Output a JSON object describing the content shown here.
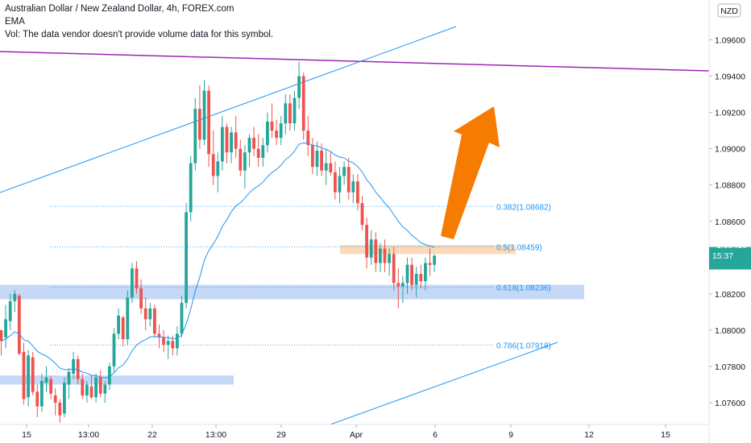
{
  "header": {
    "title": "Australian Dollar / New Zealand Dollar, 4h, FOREX.com",
    "indicator": "EMA",
    "volume_note": "Vol: The data vendor doesn't provide volume data for this symbol."
  },
  "price_axis": {
    "currency": "NZD",
    "current_price": "1.08410",
    "countdown": "15:37"
  },
  "colors": {
    "up": "#26a69a",
    "down": "#ef5350",
    "ema": "#2196f3",
    "trendline": "#2196f3",
    "resistance": "#9c27b0",
    "fib": "#2196f3",
    "zone": "#bbd1f5",
    "orange_zone": "#fbd3ad",
    "arrow": "#f57c00",
    "price_badge": "#26a69a"
  },
  "chart_data": {
    "type": "candlestick",
    "symbol": "AUDNZD",
    "timeframe": "4h",
    "ylim": [
      1.0748,
      1.0982
    ],
    "y_ticks": [
      "1.07600",
      "1.07800",
      "1.08000",
      "1.08200",
      "1.08400",
      "1.08600",
      "1.08800",
      "1.09000",
      "1.09200",
      "1.09400",
      "1.09600"
    ],
    "x_ticks": [
      "15",
      "13:00",
      "22",
      "13:00",
      "29",
      "Apr",
      "6",
      "9",
      "12",
      "15"
    ],
    "fib_levels": [
      {
        "label": "0.382(1.08682)",
        "value": 1.08682
      },
      {
        "label": "0.5(1.08459)",
        "value": 1.08459
      },
      {
        "label": "0.618(1.08236)",
        "value": 1.08236
      },
      {
        "label": "0.786(1.07918)",
        "value": 1.07918
      }
    ],
    "zones": [
      {
        "name": "support-zone-upper",
        "from": 1.0817,
        "to": 1.0825
      },
      {
        "name": "support-zone-lower",
        "from": 1.077,
        "to": 1.0775
      },
      {
        "name": "fib-zone",
        "from": 1.0842,
        "to": 1.0847
      }
    ],
    "last_price": 1.0841,
    "candles": [
      [
        1.08,
        1.08,
        1.0786,
        1.0794
      ],
      [
        1.0796,
        1.0814,
        1.079,
        1.0806
      ],
      [
        1.0805,
        1.082,
        1.08,
        1.0816
      ],
      [
        1.0816,
        1.0822,
        1.081,
        1.082
      ],
      [
        1.0819,
        1.082,
        1.0786,
        1.0787
      ],
      [
        1.0788,
        1.0793,
        1.0759,
        1.0762
      ],
      [
        1.0763,
        1.0789,
        1.0758,
        1.0786
      ],
      [
        1.0785,
        1.0788,
        1.0764,
        1.0766
      ],
      [
        1.0766,
        1.077,
        1.0752,
        1.0758
      ],
      [
        1.0758,
        1.0776,
        1.0755,
        1.0772
      ],
      [
        1.0771,
        1.078,
        1.0766,
        1.0774
      ],
      [
        1.0773,
        1.0775,
        1.0762,
        1.0765
      ],
      [
        1.0764,
        1.0768,
        1.0753,
        1.076
      ],
      [
        1.076,
        1.0762,
        1.0749,
        1.0753
      ],
      [
        1.0754,
        1.0774,
        1.0752,
        1.0771
      ],
      [
        1.077,
        1.0779,
        1.0762,
        1.0777
      ],
      [
        1.0776,
        1.0788,
        1.0773,
        1.0784
      ],
      [
        1.0784,
        1.0786,
        1.077,
        1.0773
      ],
      [
        1.0773,
        1.0776,
        1.0762,
        1.0764
      ],
      [
        1.0764,
        1.0772,
        1.076,
        1.077
      ],
      [
        1.0769,
        1.0775,
        1.0762,
        1.0763
      ],
      [
        1.0763,
        1.0776,
        1.076,
        1.0774
      ],
      [
        1.0774,
        1.0778,
        1.0763,
        1.0765
      ],
      [
        1.0765,
        1.0772,
        1.076,
        1.077
      ],
      [
        1.077,
        1.0782,
        1.0767,
        1.078
      ],
      [
        1.078,
        1.0801,
        1.0777,
        1.0798
      ],
      [
        1.0798,
        1.0812,
        1.0795,
        1.0808
      ],
      [
        1.0807,
        1.0808,
        1.0791,
        1.0795
      ],
      [
        1.0795,
        1.0822,
        1.0792,
        1.0818
      ],
      [
        1.0818,
        1.0837,
        1.0815,
        1.0834
      ],
      [
        1.0834,
        1.0838,
        1.082,
        1.0823
      ],
      [
        1.0823,
        1.0828,
        1.0809,
        1.0812
      ],
      [
        1.0812,
        1.0818,
        1.08,
        1.0806
      ],
      [
        1.0806,
        1.0815,
        1.0802,
        1.0812
      ],
      [
        1.0812,
        1.0814,
        1.0796,
        1.0798
      ],
      [
        1.0798,
        1.0803,
        1.079,
        1.0796
      ],
      [
        1.0796,
        1.08,
        1.0788,
        1.0792
      ],
      [
        1.0792,
        1.0797,
        1.0784,
        1.0794
      ],
      [
        1.0794,
        1.0797,
        1.0786,
        1.079
      ],
      [
        1.079,
        1.0802,
        1.0786,
        1.0798
      ],
      [
        1.0798,
        1.0819,
        1.0796,
        1.0815
      ],
      [
        1.0815,
        1.087,
        1.0812,
        1.0865
      ],
      [
        1.0865,
        1.0896,
        1.086,
        1.0892
      ],
      [
        1.0892,
        1.0928,
        1.0888,
        1.0922
      ],
      [
        1.0922,
        1.0935,
        1.09,
        1.0905
      ],
      [
        1.0905,
        1.0938,
        1.0902,
        1.0932
      ],
      [
        1.0932,
        1.0935,
        1.089,
        1.0897
      ],
      [
        1.0897,
        1.091,
        1.088,
        1.0885
      ],
      [
        1.0885,
        1.0898,
        1.0876,
        1.0893
      ],
      [
        1.0893,
        1.0918,
        1.0888,
        1.0912
      ],
      [
        1.0912,
        1.0914,
        1.0892,
        1.0898
      ],
      [
        1.0898,
        1.0912,
        1.0892,
        1.0909
      ],
      [
        1.0909,
        1.0918,
        1.0895,
        1.09
      ],
      [
        1.09,
        1.0905,
        1.0885,
        1.0888
      ],
      [
        1.0888,
        1.0902,
        1.0878,
        1.0898
      ],
      [
        1.0898,
        1.0908,
        1.089,
        1.0906
      ],
      [
        1.0906,
        1.0912,
        1.0896,
        1.09
      ],
      [
        1.09,
        1.0908,
        1.089,
        1.0895
      ],
      [
        1.0895,
        1.0906,
        1.089,
        1.0902
      ],
      [
        1.0902,
        1.092,
        1.0898,
        1.0915
      ],
      [
        1.0915,
        1.0925,
        1.0906,
        1.091
      ],
      [
        1.091,
        1.0916,
        1.0902,
        1.0906
      ],
      [
        1.0906,
        1.0918,
        1.0902,
        1.0914
      ],
      [
        1.0914,
        1.093,
        1.0908,
        1.0925
      ],
      [
        1.0925,
        1.093,
        1.091,
        1.0914
      ],
      [
        1.0914,
        1.0932,
        1.091,
        1.0928
      ],
      [
        1.0928,
        1.0948,
        1.0922,
        1.094
      ],
      [
        1.094,
        1.0942,
        1.0905,
        1.091
      ],
      [
        1.091,
        1.0918,
        1.0896,
        1.0902
      ],
      [
        1.0902,
        1.0906,
        1.0886,
        1.089
      ],
      [
        1.089,
        1.0904,
        1.0885,
        1.0899
      ],
      [
        1.0899,
        1.0903,
        1.0885,
        1.0888
      ],
      [
        1.0888,
        1.09,
        1.088,
        1.0892
      ],
      [
        1.0892,
        1.0898,
        1.0885,
        1.0887
      ],
      [
        1.0887,
        1.0893,
        1.0872,
        1.0876
      ],
      [
        1.0876,
        1.089,
        1.087,
        1.0885
      ],
      [
        1.0885,
        1.0893,
        1.088,
        1.089
      ],
      [
        1.089,
        1.0895,
        1.0872,
        1.0876
      ],
      [
        1.0876,
        1.0886,
        1.087,
        1.0882
      ],
      [
        1.0882,
        1.0886,
        1.0866,
        1.087
      ],
      [
        1.087,
        1.0874,
        1.0855,
        1.0858
      ],
      [
        1.0858,
        1.0862,
        1.0834,
        1.084
      ],
      [
        1.084,
        1.0855,
        1.0836,
        1.085
      ],
      [
        1.085,
        1.0854,
        1.0832,
        1.0837
      ],
      [
        1.0837,
        1.0848,
        1.0832,
        1.0845
      ],
      [
        1.0845,
        1.085,
        1.0832,
        1.0837
      ],
      [
        1.0837,
        1.0845,
        1.083,
        1.0842
      ],
      [
        1.0842,
        1.0846,
        1.0822,
        1.0826
      ],
      [
        1.0826,
        1.0834,
        1.0812,
        1.0824
      ],
      [
        1.0824,
        1.083,
        1.0815,
        1.0826
      ],
      [
        1.0826,
        1.084,
        1.082,
        1.0836
      ],
      [
        1.0836,
        1.084,
        1.0822,
        1.0825
      ],
      [
        1.0825,
        1.0835,
        1.0818,
        1.0831
      ],
      [
        1.0831,
        1.0836,
        1.0823,
        1.0827
      ],
      [
        1.0827,
        1.084,
        1.0822,
        1.0837
      ],
      [
        1.0837,
        1.0845,
        1.083,
        1.0836
      ],
      [
        1.0836,
        1.0842,
        1.0832,
        1.0841
      ]
    ]
  }
}
